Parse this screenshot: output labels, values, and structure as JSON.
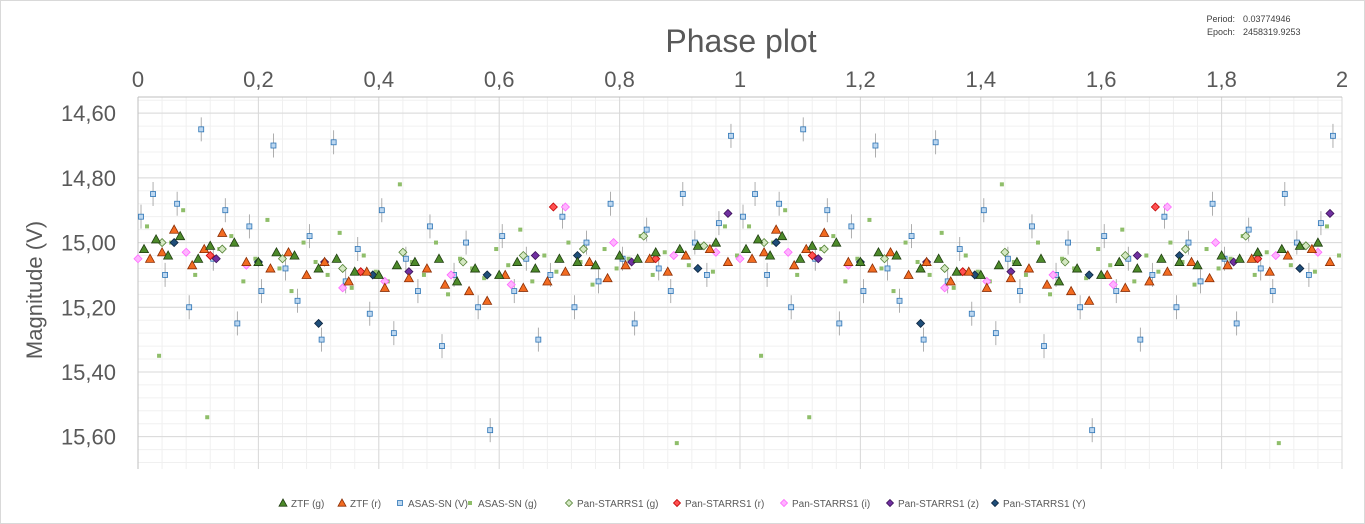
{
  "chart_data": {
    "type": "scatter",
    "title": "Phase plot",
    "xlabel": "",
    "ylabel": "Magnitude (V)",
    "xlim": [
      0,
      2
    ],
    "ylim": [
      15.7,
      14.55
    ],
    "y_inverted": true,
    "x_axis_position": "top",
    "x_ticks": [
      "0",
      "0,2",
      "0,4",
      "0,6",
      "0,8",
      "1",
      "1,2",
      "1,4",
      "1,6",
      "1,8",
      "2"
    ],
    "y_ticks": [
      "14,60",
      "14,80",
      "15,00",
      "15,20",
      "15,40",
      "15,60"
    ],
    "grid": true,
    "legend_position": "bottom",
    "info": {
      "period_label": "Period:",
      "period_value": "0.03774946",
      "epoch_label": "Epoch:",
      "epoch_value": "2458319.9253"
    },
    "series": [
      {
        "name": "ZTF (g)",
        "marker": "triangle",
        "color": "#4d8a2a",
        "edge": "#1f3d10",
        "x": [
          0.01,
          0.03,
          0.05,
          0.07,
          0.1,
          0.12,
          0.16,
          0.2,
          0.23,
          0.26,
          0.3,
          0.33,
          0.36,
          0.4,
          0.43,
          0.46,
          0.5,
          0.53,
          0.56,
          0.6,
          0.63,
          0.66,
          0.7,
          0.73,
          0.76,
          0.8,
          0.83,
          0.86,
          0.9,
          0.93,
          0.96
        ],
        "y": [
          15.02,
          14.99,
          15.04,
          14.98,
          15.05,
          15.01,
          15.0,
          15.06,
          15.03,
          15.04,
          15.08,
          15.05,
          15.09,
          15.1,
          15.07,
          15.06,
          15.05,
          15.12,
          15.08,
          15.1,
          15.06,
          15.08,
          15.05,
          15.06,
          15.07,
          15.04,
          15.05,
          15.03,
          15.02,
          15.01,
          15.0
        ]
      },
      {
        "name": "ZTF (r)",
        "marker": "triangle",
        "color": "#f26b21",
        "edge": "#8a2e05",
        "x": [
          0.02,
          0.04,
          0.06,
          0.09,
          0.11,
          0.14,
          0.18,
          0.22,
          0.25,
          0.28,
          0.31,
          0.35,
          0.38,
          0.41,
          0.45,
          0.48,
          0.51,
          0.55,
          0.58,
          0.61,
          0.64,
          0.68,
          0.71,
          0.75,
          0.78,
          0.81,
          0.85,
          0.88,
          0.91,
          0.95,
          0.98
        ],
        "y": [
          15.05,
          15.03,
          14.96,
          15.07,
          15.02,
          14.97,
          15.06,
          15.08,
          15.03,
          15.1,
          15.06,
          15.12,
          15.09,
          15.14,
          15.11,
          15.08,
          15.13,
          15.15,
          15.18,
          15.1,
          15.14,
          15.12,
          15.09,
          15.06,
          15.11,
          15.07,
          15.05,
          15.09,
          15.04,
          15.02,
          15.06
        ]
      },
      {
        "name": "ASAS-SN (V)",
        "marker": "square",
        "color": "#bcd7f0",
        "edge": "#2e75b6",
        "errorbar": true,
        "x": [
          0.005,
          0.025,
          0.045,
          0.065,
          0.085,
          0.105,
          0.125,
          0.145,
          0.165,
          0.185,
          0.205,
          0.225,
          0.245,
          0.265,
          0.285,
          0.305,
          0.325,
          0.345,
          0.365,
          0.385,
          0.405,
          0.425,
          0.445,
          0.465,
          0.485,
          0.505,
          0.525,
          0.545,
          0.565,
          0.585,
          0.605,
          0.625,
          0.645,
          0.665,
          0.685,
          0.705,
          0.725,
          0.745,
          0.765,
          0.785,
          0.805,
          0.825,
          0.845,
          0.865,
          0.885,
          0.905,
          0.925,
          0.945,
          0.965,
          0.985
        ],
        "y": [
          14.92,
          14.85,
          15.1,
          14.88,
          15.2,
          14.65,
          15.05,
          14.9,
          15.25,
          14.95,
          15.15,
          14.7,
          15.08,
          15.18,
          14.98,
          15.3,
          14.69,
          15.12,
          15.02,
          15.22,
          14.9,
          15.28,
          15.05,
          15.15,
          14.95,
          15.32,
          15.1,
          15.0,
          15.2,
          15.58,
          14.98,
          15.15,
          15.05,
          15.3,
          15.1,
          14.92,
          15.2,
          15.0,
          15.12,
          14.88,
          15.05,
          15.25,
          14.96,
          15.08,
          15.15,
          14.85,
          15.0,
          15.1,
          14.94,
          14.67
        ]
      },
      {
        "name": "ASAS-SN (g)",
        "marker": "smallsquare",
        "color": "#8fbe6a",
        "edge": "#8fbe6a",
        "x": [
          0.015,
          0.035,
          0.055,
          0.075,
          0.095,
          0.115,
          0.135,
          0.155,
          0.175,
          0.195,
          0.215,
          0.235,
          0.255,
          0.275,
          0.295,
          0.315,
          0.335,
          0.355,
          0.375,
          0.395,
          0.415,
          0.435,
          0.455,
          0.475,
          0.495,
          0.515,
          0.535,
          0.555,
          0.575,
          0.595,
          0.615,
          0.635,
          0.655,
          0.675,
          0.695,
          0.715,
          0.735,
          0.755,
          0.775,
          0.795,
          0.815,
          0.835,
          0.855,
          0.875,
          0.895,
          0.915,
          0.935,
          0.955,
          0.975,
          0.995
        ],
        "y": [
          14.95,
          15.35,
          15.0,
          14.9,
          15.1,
          15.54,
          15.02,
          14.98,
          15.12,
          15.05,
          14.93,
          15.08,
          15.15,
          15.0,
          15.06,
          15.1,
          14.97,
          15.14,
          15.04,
          15.09,
          15.12,
          14.82,
          15.06,
          15.1,
          15.0,
          15.16,
          15.05,
          15.08,
          15.11,
          15.02,
          15.07,
          14.96,
          15.12,
          15.04,
          15.09,
          15.0,
          15.06,
          15.13,
          15.02,
          15.08,
          15.05,
          14.98,
          15.1,
          15.03,
          15.62,
          15.07,
          15.01,
          15.09,
          14.95,
          15.04
        ]
      },
      {
        "name": "Pan-STARRS1 (g)",
        "marker": "diamond",
        "color": "#d4e8c2",
        "edge": "#548235",
        "x": [
          0.04,
          0.14,
          0.24,
          0.34,
          0.44,
          0.54,
          0.64,
          0.74,
          0.84,
          0.94
        ],
        "y": [
          15.0,
          15.02,
          15.05,
          15.08,
          15.03,
          15.06,
          15.04,
          15.02,
          14.98,
          15.01
        ]
      },
      {
        "name": "Pan-STARRS1 (r)",
        "marker": "diamond",
        "color": "#ff5050",
        "edge": "#c00000",
        "x": [
          0.12,
          0.37,
          0.69,
          0.86
        ],
        "y": [
          15.04,
          15.09,
          14.89,
          15.05
        ]
      },
      {
        "name": "Pan-STARRS1 (i)",
        "marker": "diamond",
        "color": "#ffb3ff",
        "edge": "#ff66ff",
        "x": [
          0.0,
          0.08,
          0.18,
          0.34,
          0.41,
          0.52,
          0.62,
          0.71,
          0.79,
          0.89,
          0.96
        ],
        "y": [
          15.05,
          15.03,
          15.07,
          15.14,
          15.12,
          15.1,
          15.13,
          14.89,
          15.0,
          15.04,
          15.03
        ]
      },
      {
        "name": "Pan-STARRS1 (z)",
        "marker": "diamond",
        "color": "#7030a0",
        "edge": "#3b1158",
        "x": [
          0.13,
          0.31,
          0.45,
          0.66,
          0.82,
          0.98
        ],
        "y": [
          15.05,
          15.06,
          15.09,
          15.04,
          15.06,
          14.91
        ]
      },
      {
        "name": "Pan-STARRS1 (Y)",
        "marker": "diamond",
        "color": "#1f4e79",
        "edge": "#0d2540",
        "x": [
          0.06,
          0.2,
          0.3,
          0.39,
          0.58,
          0.73,
          0.93
        ],
        "y": [
          15.0,
          15.06,
          15.25,
          15.1,
          15.1,
          15.04,
          15.08
        ]
      }
    ]
  }
}
